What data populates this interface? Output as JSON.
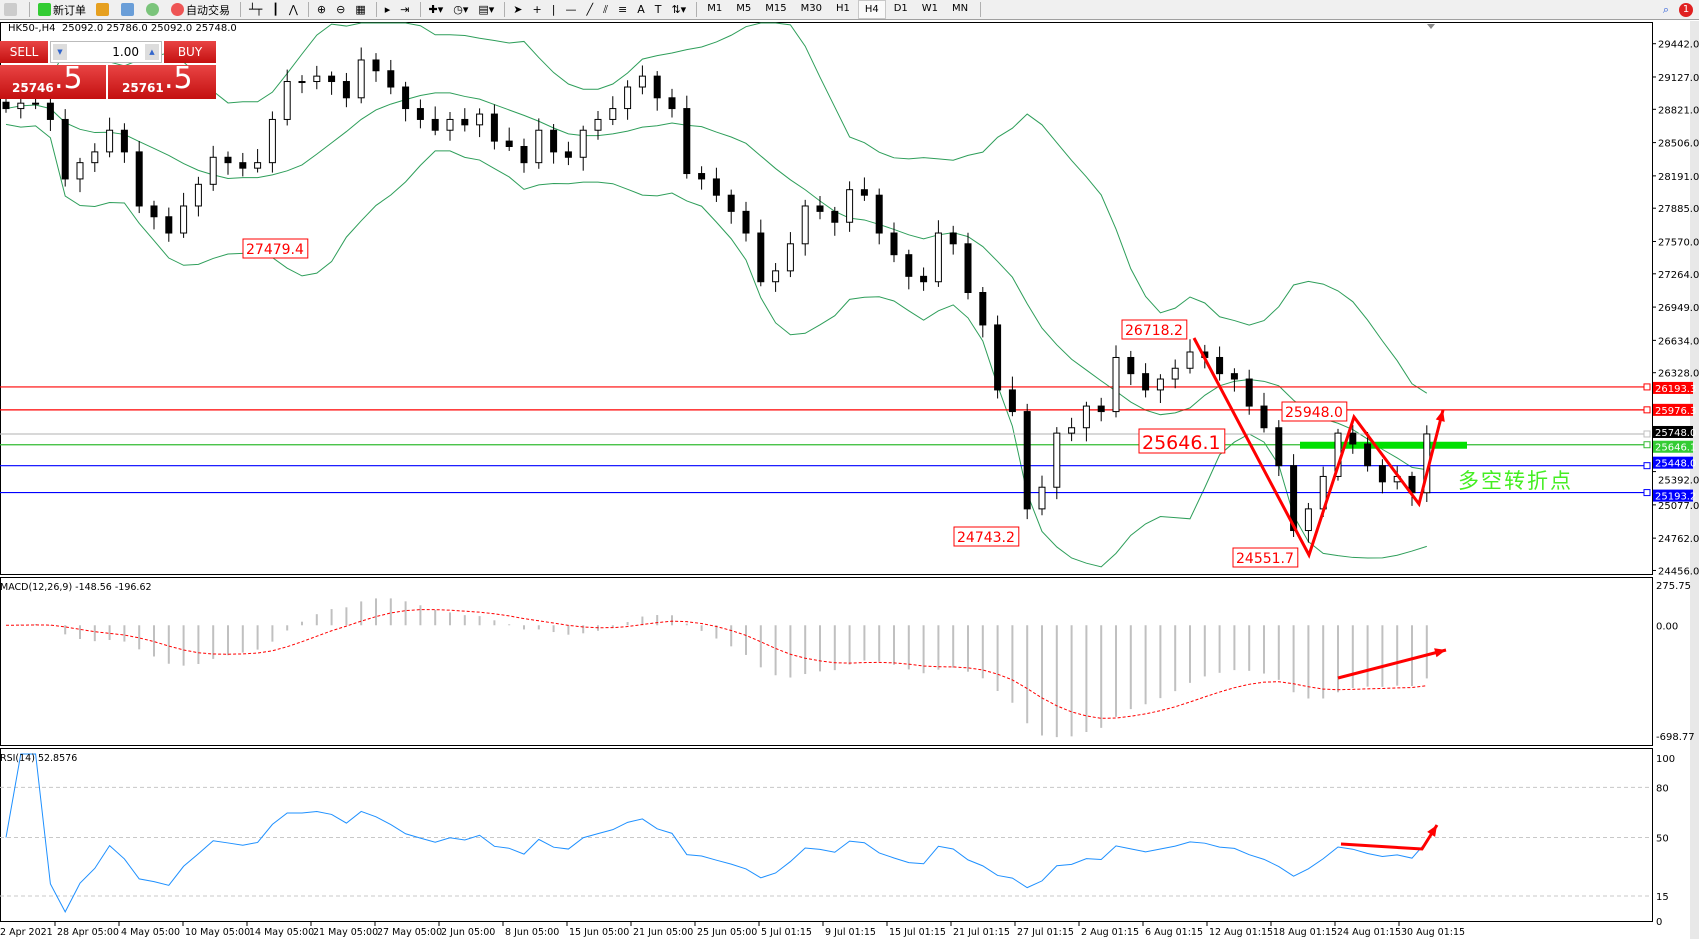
{
  "toolbar": {
    "new_order": "新订单",
    "auto_trade": "自动交易",
    "timeframes": [
      "M1",
      "M5",
      "M15",
      "M30",
      "H1",
      "H4",
      "D1",
      "W1",
      "MN"
    ],
    "active_timeframe": "H4",
    "notification_count": "1"
  },
  "chart_header": {
    "symbol": "HK50-,H4",
    "ohlc": "25092.0 25786.0 25092.0 25748.0"
  },
  "trade_panel": {
    "sell_label": "SELL",
    "buy_label": "BUY",
    "lot": "1.00",
    "sell_main": "25746",
    "sell_frac": ".5",
    "buy_main": "25761",
    "buy_frac": ".5"
  },
  "colors": {
    "up_candle": "#ffffff",
    "down_candle": "#000000",
    "bands": "#2e9e5a",
    "macd_signal": "#ff0000",
    "macd_hist": "#c0c0c0",
    "rsi": "#1e90ff",
    "annotation": "#ff0000",
    "note": "#44ee22"
  },
  "chart_data": {
    "type": "candlestick",
    "closes": [
      28828,
      28879,
      28879,
      28725,
      28162,
      28316,
      28418,
      28623,
      28418,
      27906,
      27804,
      27650,
      27906,
      28111,
      28367,
      28316,
      28264,
      28316,
      28725,
      29084,
      29084,
      29135,
      29084,
      28930,
      29288,
      29186,
      29032,
      28828,
      28725,
      28623,
      28725,
      28674,
      28776,
      28520,
      28469,
      28316,
      28623,
      28418,
      28367,
      28623,
      28725,
      28828,
      29032,
      29135,
      28930,
      28828,
      28213,
      28162,
      28008,
      27855,
      27650,
      27189,
      27292,
      27548,
      27906,
      27855,
      27752,
      28060,
      28008,
      27650,
      27445,
      27240,
      27189,
      27650,
      27548,
      27087,
      26780,
      26165,
      25960,
      25039,
      25244,
      25756,
      25807,
      26012,
      25960,
      26472,
      26319,
      26165,
      26268,
      26370,
      26524,
      26472,
      26319,
      26268,
      26012,
      25807,
      25448,
      24834,
      25039,
      25346,
      25756,
      25653,
      25448,
      25295,
      25346,
      25192,
      25748
    ],
    "price_range": [
      24456,
      29442
    ],
    "price_ticks": [
      "29442.0",
      "29127.0",
      "28821.0",
      "28506.0",
      "28191.0",
      "27885.0",
      "27570.0",
      "27264.0",
      "26949.0",
      "26634.0",
      "26328.0",
      "25392.0",
      "25077.0",
      "24762.0",
      "24456.0"
    ],
    "x_tick_labels": [
      "2 Apr 2021",
      "28 Apr 05:00",
      "4 May 05:00",
      "10 May 05:00",
      "14 May 05:00",
      "21 May 05:00",
      "27 May 05:00",
      "2 Jun 05:00",
      "8 Jun 05:00",
      "15 Jun 05:00",
      "21 Jun 05:00",
      "25 Jun 05:00",
      "5 Jul 01:15",
      "9 Jul 01:15",
      "15 Jul 01:15",
      "21 Jul 01:15",
      "27 Jul 01:15",
      "2 Aug 01:15",
      "6 Aug 01:15",
      "12 Aug 01:15",
      "18 Aug 01:15",
      "24 Aug 01:15",
      "30 Aug 01:15"
    ],
    "levels": [
      {
        "price": "26193.3",
        "color": "#ff0000"
      },
      {
        "price": "25976.3",
        "color": "#ff0000"
      },
      {
        "price": "25748.0",
        "color": "#c0c0c0",
        "label_bg": "#000000"
      },
      {
        "price": "25646.1",
        "color": "#33bb33",
        "label_bg": "#33cc33"
      },
      {
        "price": "25448.0",
        "color": "#0000ff"
      },
      {
        "price": "25193.2",
        "color": "#0000ff"
      }
    ],
    "annotations": [
      "27479.4",
      "26718.2",
      "25646.1",
      "25948.0",
      "24743.2",
      "24551.7"
    ],
    "note": "多空转折点",
    "macd": {
      "label": "MACD(12,26,9) -148.56 -196.62",
      "ticks": [
        "275.75",
        "0.00",
        "-698.77"
      ],
      "range": [
        -698.77,
        275.75
      ]
    },
    "rsi": {
      "label": "RSI(14) 52.8576",
      "ticks": [
        "100",
        "80",
        "50",
        "15",
        "0"
      ],
      "levels": [
        80,
        50,
        15
      ]
    }
  }
}
